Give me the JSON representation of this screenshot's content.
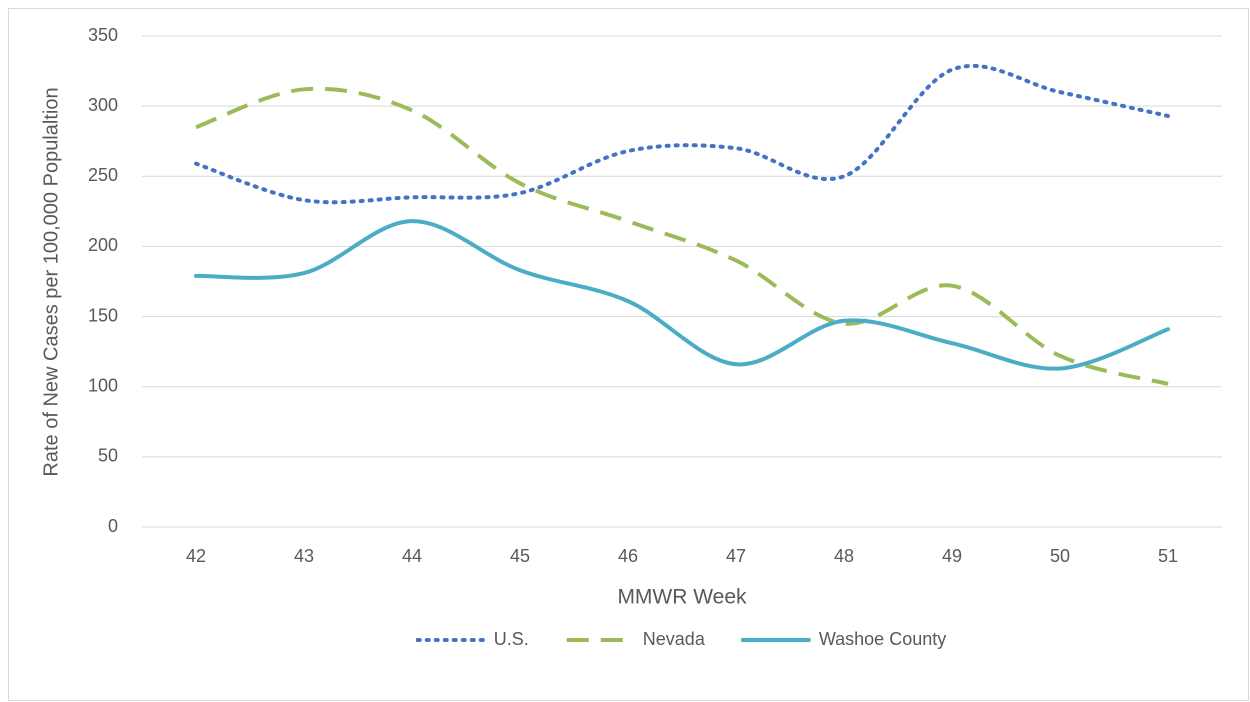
{
  "chart_data": {
    "type": "line",
    "xlabel": "MMWR Week",
    "ylabel": "Rate of New Cases per 100,000 Populaltion",
    "categories": [
      "42",
      "43",
      "44",
      "45",
      "46",
      "47",
      "48",
      "49",
      "50",
      "51"
    ],
    "series": [
      {
        "name": "U.S.",
        "color": "#4472c4",
        "style": "dotted",
        "values": [
          259,
          233,
          235,
          238,
          268,
          270,
          250,
          326,
          310,
          293
        ]
      },
      {
        "name": "Nevada",
        "color": "#9bbb59",
        "style": "dashed",
        "values": [
          285,
          312,
          297,
          245,
          218,
          190,
          145,
          172,
          122,
          102
        ]
      },
      {
        "name": "Washoe County",
        "color": "#4bacc6",
        "style": "solid",
        "values": [
          179,
          181,
          218,
          183,
          161,
          116,
          147,
          131,
          113,
          141
        ]
      }
    ],
    "ylim": [
      0,
      350
    ],
    "yticks": [
      0,
      50,
      100,
      150,
      200,
      250,
      300,
      350
    ],
    "grid": true,
    "smooth": true,
    "legend": "bottom"
  }
}
